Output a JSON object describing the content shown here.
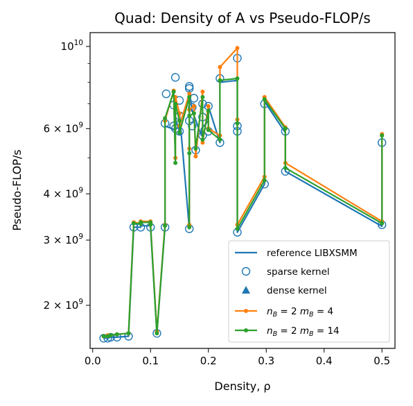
{
  "chart_data": {
    "type": "line",
    "title": "Quad: Density of A vs Pseudo-FLOP/s",
    "xlabel": "Density, ρ",
    "ylabel": "Pseudo-FLOP/s",
    "xlim": [
      -0.0045,
      0.5225
    ],
    "ylim": [
      1530000000.0,
      10900000000.0
    ],
    "yscale": "log",
    "grid": false,
    "legend_position": "lower-right",
    "x_ticks": [
      {
        "value": 0.0,
        "label": "0.0"
      },
      {
        "value": 0.1,
        "label": "0.1"
      },
      {
        "value": 0.2,
        "label": "0.2"
      },
      {
        "value": 0.3,
        "label": "0.3"
      },
      {
        "value": 0.4,
        "label": "0.4"
      },
      {
        "value": 0.5,
        "label": "0.5"
      }
    ],
    "y_ticks": [
      {
        "value": 2000000000.0,
        "base": "2 × 10",
        "exp": "9"
      },
      {
        "value": 3000000000.0,
        "base": "3 × 10",
        "exp": "9"
      },
      {
        "value": 4000000000.0,
        "base": "4 × 10",
        "exp": "9"
      },
      {
        "value": 6000000000.0,
        "base": "6 × 10",
        "exp": "9"
      },
      {
        "value": 10000000000.0,
        "base": "10",
        "exp": "10"
      }
    ],
    "y_minor_ticks": [
      5000000000.0,
      7000000000.0,
      8000000000.0,
      9000000000.0
    ],
    "colors": {
      "reference": "#1f77b4",
      "nb2mb4": "#ff7f0e",
      "nb2mb14": "#2ca02c"
    },
    "legend": [
      {
        "label": "reference LIBXSMM",
        "marker": "line",
        "color": "#1f77b4"
      },
      {
        "label": "sparse kernel",
        "marker": "open-circle",
        "color": "#1f77b4"
      },
      {
        "label": "dense kernel",
        "marker": "triangle",
        "color": "#1f77b4"
      },
      {
        "label": "n_B = 2 m_B = 4",
        "marker": "line-dot",
        "color": "#ff7f0e"
      },
      {
        "label": "n_B = 2 m_B = 14",
        "marker": "line-dot",
        "color": "#2ca02c"
      }
    ],
    "series": [
      {
        "name": "reference LIBXSMM",
        "points": [
          [
            0.019,
            1630000000.0
          ],
          [
            0.026,
            1630000000.0
          ],
          [
            0.031,
            1640000000.0
          ],
          [
            0.042,
            1640000000.0
          ],
          [
            0.062,
            1650000000.0
          ],
          [
            0.071,
            3250000000.0
          ],
          [
            0.083,
            3250000000.0
          ],
          [
            0.083,
            3280000000.0
          ],
          [
            0.1,
            3280000000.0
          ],
          [
            0.1,
            3250000000.0
          ],
          [
            0.111,
            1680000000.0
          ],
          [
            0.125,
            3250000000.0
          ],
          [
            0.125,
            6100000000.0
          ],
          [
            0.143,
            5950000000.0
          ],
          [
            0.143,
            6400000000.0
          ],
          [
            0.15,
            5900000000.0
          ],
          [
            0.15,
            6600000000.0
          ],
          [
            0.167,
            3220000000.0
          ],
          [
            0.167,
            7600000000.0
          ],
          [
            0.172,
            6700000000.0
          ],
          [
            0.188,
            5750000000.0
          ],
          [
            0.188,
            6000000000.0
          ],
          [
            0.2,
            6300000000.0
          ],
          [
            0.2,
            6900000000.0
          ],
          [
            0.22,
            5500000000.0
          ],
          [
            0.22,
            8000000000.0
          ],
          [
            0.25,
            8100000000.0
          ],
          [
            0.25,
            3150000000.0
          ],
          [
            0.297,
            4250000000.0
          ],
          [
            0.297,
            7100000000.0
          ],
          [
            0.333,
            5850000000.0
          ],
          [
            0.333,
            4600000000.0
          ],
          [
            0.5,
            3270000000.0
          ],
          [
            0.5,
            5400000000.0
          ]
        ]
      },
      {
        "name": "sparse kernel",
        "points": [
          [
            0.019,
            1630000000.0
          ],
          [
            0.026,
            1630000000.0
          ],
          [
            0.031,
            1640000000.0
          ],
          [
            0.042,
            1640000000.0
          ],
          [
            0.062,
            1650000000.0
          ],
          [
            0.071,
            3250000000.0
          ],
          [
            0.083,
            3250000000.0
          ],
          [
            0.1,
            3250000000.0
          ],
          [
            0.111,
            1680000000.0
          ],
          [
            0.125,
            3250000000.0
          ],
          [
            0.125,
            6200000000.0
          ],
          [
            0.127,
            7450000000.0
          ],
          [
            0.14,
            6950000000.0
          ],
          [
            0.14,
            6100000000.0
          ],
          [
            0.143,
            8250000000.0
          ],
          [
            0.143,
            6000000000.0
          ],
          [
            0.15,
            7150000000.0
          ],
          [
            0.15,
            5900000000.0
          ],
          [
            0.15,
            6500000000.0
          ],
          [
            0.167,
            7800000000.0
          ],
          [
            0.167,
            7700000000.0
          ],
          [
            0.167,
            3220000000.0
          ],
          [
            0.167,
            6300000000.0
          ],
          [
            0.172,
            6850000000.0
          ],
          [
            0.172,
            6100000000.0
          ],
          [
            0.175,
            7250000000.0
          ],
          [
            0.178,
            5250000000.0
          ],
          [
            0.19,
            7000000000.0
          ],
          [
            0.19,
            5750000000.0
          ],
          [
            0.19,
            6450000000.0
          ],
          [
            0.2,
            5900000000.0
          ],
          [
            0.2,
            6900000000.0
          ],
          [
            0.22,
            5500000000.0
          ],
          [
            0.22,
            8200000000.0
          ],
          [
            0.25,
            9300000000.0
          ],
          [
            0.25,
            6100000000.0
          ],
          [
            0.25,
            5900000000.0
          ],
          [
            0.25,
            3150000000.0
          ],
          [
            0.297,
            4250000000.0
          ],
          [
            0.297,
            7000000000.0
          ],
          [
            0.333,
            5900000000.0
          ],
          [
            0.333,
            4600000000.0
          ],
          [
            0.5,
            3300000000.0
          ],
          [
            0.5,
            5500000000.0
          ]
        ]
      },
      {
        "name": "n_B = 2 m_B = 4",
        "points": [
          [
            0.019,
            1650000000.0
          ],
          [
            0.026,
            1660000000.0
          ],
          [
            0.031,
            1660000000.0
          ],
          [
            0.042,
            1670000000.0
          ],
          [
            0.062,
            1680000000.0
          ],
          [
            0.071,
            3350000000.0
          ],
          [
            0.083,
            3330000000.0
          ],
          [
            0.083,
            3370000000.0
          ],
          [
            0.1,
            3370000000.0
          ],
          [
            0.1,
            3320000000.0
          ],
          [
            0.111,
            1700000000.0
          ],
          [
            0.125,
            3300000000.0
          ],
          [
            0.125,
            6300000000.0
          ],
          [
            0.14,
            7600000000.0
          ],
          [
            0.143,
            5000000000.0
          ],
          [
            0.143,
            7300000000.0
          ],
          [
            0.15,
            6600000000.0
          ],
          [
            0.15,
            6100000000.0
          ],
          [
            0.167,
            7450000000.0
          ],
          [
            0.167,
            5300000000.0
          ],
          [
            0.167,
            3300000000.0
          ],
          [
            0.167,
            6750000000.0
          ],
          [
            0.175,
            6900000000.0
          ],
          [
            0.178,
            5050000000.0
          ],
          [
            0.19,
            7550000000.0
          ],
          [
            0.19,
            5500000000.0
          ],
          [
            0.2,
            6900000000.0
          ],
          [
            0.2,
            6000000000.0
          ],
          [
            0.22,
            5750000000.0
          ],
          [
            0.22,
            8800000000.0
          ],
          [
            0.25,
            9900000000.0
          ],
          [
            0.25,
            6350000000.0
          ],
          [
            0.25,
            3300000000.0
          ],
          [
            0.297,
            4450000000.0
          ],
          [
            0.297,
            7300000000.0
          ],
          [
            0.333,
            6050000000.0
          ],
          [
            0.333,
            4850000000.0
          ],
          [
            0.5,
            3370000000.0
          ],
          [
            0.5,
            5800000000.0
          ]
        ]
      },
      {
        "name": "n_B = 2 m_B = 14",
        "points": [
          [
            0.019,
            1650000000.0
          ],
          [
            0.026,
            1650000000.0
          ],
          [
            0.031,
            1660000000.0
          ],
          [
            0.042,
            1670000000.0
          ],
          [
            0.062,
            1680000000.0
          ],
          [
            0.071,
            3330000000.0
          ],
          [
            0.083,
            3320000000.0
          ],
          [
            0.083,
            3350000000.0
          ],
          [
            0.1,
            3350000000.0
          ],
          [
            0.1,
            3300000000.0
          ],
          [
            0.111,
            1680000000.0
          ],
          [
            0.125,
            3280000000.0
          ],
          [
            0.125,
            6400000000.0
          ],
          [
            0.14,
            7550000000.0
          ],
          [
            0.143,
            4850000000.0
          ],
          [
            0.143,
            7000000000.0
          ],
          [
            0.15,
            6300000000.0
          ],
          [
            0.15,
            5850000000.0
          ],
          [
            0.167,
            7300000000.0
          ],
          [
            0.167,
            5150000000.0
          ],
          [
            0.167,
            3250000000.0
          ],
          [
            0.167,
            6500000000.0
          ],
          [
            0.175,
            6600000000.0
          ],
          [
            0.178,
            5300000000.0
          ],
          [
            0.19,
            7300000000.0
          ],
          [
            0.19,
            5600000000.0
          ],
          [
            0.2,
            6700000000.0
          ],
          [
            0.2,
            5950000000.0
          ],
          [
            0.22,
            5600000000.0
          ],
          [
            0.22,
            8100000000.0
          ],
          [
            0.25,
            8200000000.0
          ],
          [
            0.25,
            6200000000.0
          ],
          [
            0.25,
            3220000000.0
          ],
          [
            0.297,
            4350000000.0
          ],
          [
            0.297,
            7200000000.0
          ],
          [
            0.333,
            6000000000.0
          ],
          [
            0.333,
            4700000000.0
          ],
          [
            0.5,
            3330000000.0
          ],
          [
            0.5,
            5750000000.0
          ]
        ]
      }
    ]
  }
}
